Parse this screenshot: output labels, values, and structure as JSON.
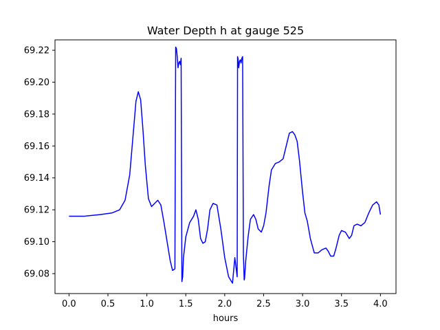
{
  "chart_data": {
    "type": "line",
    "title": "Water Depth h at gauge 525",
    "xlabel": "hours",
    "ylabel": "",
    "xlim": [
      -0.18,
      4.2
    ],
    "ylim": [
      69.0675,
      69.2265
    ],
    "xticks": [
      0.0,
      0.5,
      1.0,
      1.5,
      2.0,
      2.5,
      3.0,
      3.5,
      4.0
    ],
    "xtick_labels": [
      "0.0",
      "0.5",
      "1.0",
      "1.5",
      "2.0",
      "2.5",
      "3.0",
      "3.5",
      "4.0"
    ],
    "yticks": [
      69.08,
      69.1,
      69.12,
      69.14,
      69.16,
      69.18,
      69.2,
      69.22
    ],
    "ytick_labels": [
      "69.08",
      "69.10",
      "69.12",
      "69.14",
      "69.16",
      "69.18",
      "69.20",
      "69.22"
    ],
    "grid": false,
    "series": [
      {
        "color": "#0000ff",
        "x": [
          0.0,
          0.2,
          0.4,
          0.55,
          0.65,
          0.72,
          0.78,
          0.82,
          0.86,
          0.89,
          0.92,
          0.95,
          0.98,
          1.02,
          1.06,
          1.1,
          1.14,
          1.18,
          1.22,
          1.26,
          1.3,
          1.33,
          1.36,
          1.37,
          1.38,
          1.39,
          1.4,
          1.41,
          1.42,
          1.43,
          1.44,
          1.45,
          1.46,
          1.47,
          1.5,
          1.55,
          1.6,
          1.63,
          1.66,
          1.69,
          1.72,
          1.75,
          1.78,
          1.81,
          1.85,
          1.9,
          1.95,
          2.0,
          2.05,
          2.1,
          2.13,
          2.16,
          2.165,
          2.17,
          2.18,
          2.19,
          2.2,
          2.21,
          2.22,
          2.23,
          2.24,
          2.25,
          2.255,
          2.27,
          2.3,
          2.33,
          2.37,
          2.4,
          2.43,
          2.47,
          2.5,
          2.53,
          2.57,
          2.6,
          2.65,
          2.7,
          2.75,
          2.78,
          2.8,
          2.83,
          2.87,
          2.9,
          2.93,
          2.96,
          3.0,
          3.03,
          3.06,
          3.1,
          3.15,
          3.2,
          3.25,
          3.3,
          3.33,
          3.36,
          3.4,
          3.43,
          3.47,
          3.5,
          3.55,
          3.6,
          3.63,
          3.66,
          3.7,
          3.75,
          3.8,
          3.85,
          3.9,
          3.95,
          3.98,
          4.0
        ],
        "y": [
          69.116,
          69.116,
          69.117,
          69.118,
          69.12,
          69.126,
          69.142,
          69.165,
          69.188,
          69.194,
          69.189,
          69.17,
          69.148,
          69.127,
          69.122,
          69.124,
          69.126,
          69.123,
          69.112,
          69.1,
          69.088,
          69.082,
          69.083,
          69.222,
          69.221,
          69.216,
          69.209,
          69.212,
          69.213,
          69.211,
          69.215,
          69.075,
          69.078,
          69.09,
          69.103,
          69.112,
          69.116,
          69.12,
          69.114,
          69.102,
          69.099,
          69.1,
          69.108,
          69.12,
          69.124,
          69.123,
          69.108,
          69.09,
          69.078,
          69.074,
          69.09,
          69.078,
          69.216,
          69.215,
          69.209,
          69.213,
          69.214,
          69.212,
          69.215,
          69.216,
          69.092,
          69.076,
          69.077,
          69.088,
          69.103,
          69.114,
          69.117,
          69.114,
          69.108,
          69.106,
          69.11,
          69.118,
          69.135,
          69.145,
          69.149,
          69.15,
          69.152,
          69.158,
          69.162,
          69.168,
          69.169,
          69.167,
          69.163,
          69.151,
          69.131,
          69.118,
          69.113,
          69.102,
          69.093,
          69.093,
          69.095,
          69.096,
          69.094,
          69.091,
          69.091,
          69.096,
          69.104,
          69.107,
          69.106,
          69.102,
          69.104,
          69.11,
          69.111,
          69.11,
          69.112,
          69.118,
          69.123,
          69.125,
          69.123,
          69.117
        ]
      }
    ]
  }
}
